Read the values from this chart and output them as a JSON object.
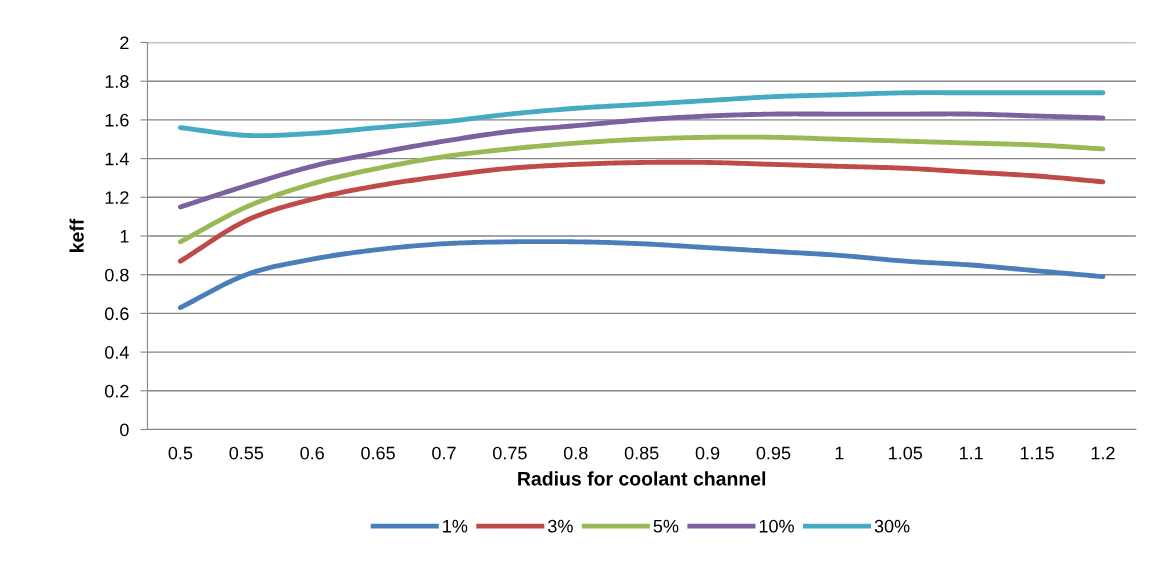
{
  "chart_data": {
    "type": "line",
    "xlabel": "Radius for coolant channel",
    "ylabel": "keff",
    "categories": [
      "0.5",
      "0.55",
      "0.6",
      "0.65",
      "0.7",
      "0.75",
      "0.8",
      "0.85",
      "0.9",
      "0.95",
      "1",
      "1.05",
      "1.1",
      "1.15",
      "1.2"
    ],
    "series": [
      {
        "name": "1%",
        "color": "#4a7ebb",
        "values": [
          0.63,
          0.8,
          0.88,
          0.93,
          0.96,
          0.97,
          0.97,
          0.96,
          0.94,
          0.92,
          0.9,
          0.87,
          0.85,
          0.82,
          0.79
        ]
      },
      {
        "name": "3%",
        "color": "#be4b48",
        "values": [
          0.87,
          1.08,
          1.19,
          1.26,
          1.31,
          1.35,
          1.37,
          1.38,
          1.38,
          1.37,
          1.36,
          1.35,
          1.33,
          1.31,
          1.28
        ]
      },
      {
        "name": "5%",
        "color": "#98b954",
        "values": [
          0.97,
          1.15,
          1.27,
          1.35,
          1.41,
          1.45,
          1.48,
          1.5,
          1.51,
          1.51,
          1.5,
          1.49,
          1.48,
          1.47,
          1.45
        ]
      },
      {
        "name": "10%",
        "color": "#7d60a0",
        "values": [
          1.15,
          1.26,
          1.36,
          1.43,
          1.49,
          1.54,
          1.57,
          1.6,
          1.62,
          1.63,
          1.63,
          1.63,
          1.63,
          1.62,
          1.61
        ]
      },
      {
        "name": "30%",
        "color": "#46aac5",
        "values": [
          1.56,
          1.52,
          1.53,
          1.56,
          1.59,
          1.63,
          1.66,
          1.68,
          1.7,
          1.72,
          1.73,
          1.74,
          1.74,
          1.74,
          1.74
        ]
      }
    ],
    "ylim": [
      0,
      2
    ],
    "yticks": [
      0,
      0.2,
      0.4,
      0.6,
      0.8,
      1,
      1.2,
      1.4,
      1.6,
      1.8,
      2
    ],
    "grid": "y",
    "legend": "bottom",
    "marker": "none",
    "line_style": "solid"
  }
}
